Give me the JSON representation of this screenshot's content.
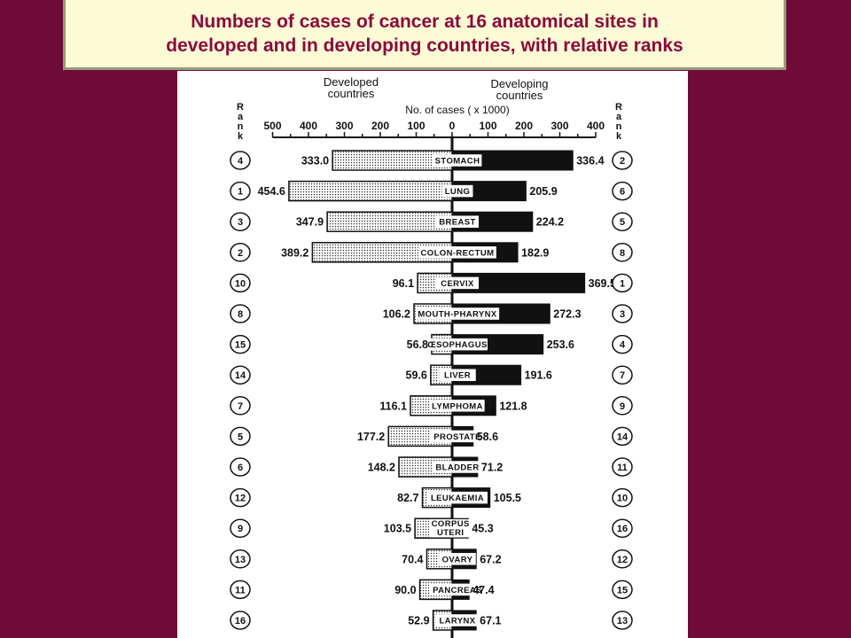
{
  "slide": {
    "title_line1": "Numbers of cases of cancer at 16 anatomical sites in",
    "title_line2": "developed and in developing countries, with relative ranks"
  },
  "colors": {
    "background": "#6e0b39",
    "title_box": "#fbfbd6",
    "title_text": "#8b0a3c",
    "developed_fill": "dotted",
    "developing_fill": "#111111"
  },
  "chart_data": {
    "type": "bar",
    "orientation": "horizontal-diverging",
    "header_left_line1": "Developed",
    "header_left_line2": "countries",
    "header_right_line1": "Developing",
    "header_right_line2": "countries",
    "axis_label": "No. of cases ( x 1000)",
    "rank_label": "Rank",
    "left_ticks": [
      "500",
      "400",
      "300",
      "200",
      "100"
    ],
    "zero_tick": "0",
    "right_ticks": [
      "100",
      "200",
      "300",
      "400"
    ],
    "xlim": [
      -500,
      400
    ],
    "series": [
      {
        "name": "Developed countries",
        "values": [
          333.0,
          454.6,
          347.9,
          389.2,
          96.1,
          106.2,
          56.8,
          59.6,
          116.1,
          177.2,
          148.2,
          82.7,
          103.5,
          70.4,
          90.0,
          52.9
        ]
      },
      {
        "name": "Developing countries",
        "values": [
          336.4,
          205.9,
          224.2,
          182.9,
          369.5,
          272.3,
          253.6,
          191.6,
          121.8,
          58.6,
          71.2,
          105.5,
          45.3,
          67.2,
          47.4,
          67.1
        ]
      }
    ],
    "sites": [
      {
        "label": "STOMACH",
        "developed": "333.0",
        "developing": "336.4",
        "rank_developed": "4",
        "rank_developing": "2"
      },
      {
        "label": "LUNG",
        "developed": "454.6",
        "developing": "205.9",
        "rank_developed": "1",
        "rank_developing": "6"
      },
      {
        "label": "BREAST",
        "developed": "347.9",
        "developing": "224.2",
        "rank_developed": "3",
        "rank_developing": "5"
      },
      {
        "label": "COLON-RECTUM",
        "developed": "389.2",
        "developing": "182.9",
        "rank_developed": "2",
        "rank_developing": "8"
      },
      {
        "label": "CERVIX",
        "developed": "96.1",
        "developing": "369.5",
        "rank_developed": "10",
        "rank_developing": "1"
      },
      {
        "label": "MOUTH-PHARYNX",
        "developed": "106.2",
        "developing": "272.3",
        "rank_developed": "8",
        "rank_developing": "3"
      },
      {
        "label": "ŒSOPHAGUS",
        "developed": "56.8",
        "developing": "253.6",
        "rank_developed": "15",
        "rank_developing": "4"
      },
      {
        "label": "LIVER",
        "developed": "59.6",
        "developing": "191.6",
        "rank_developed": "14",
        "rank_developing": "7"
      },
      {
        "label": "LYMPHOMA",
        "developed": "116.1",
        "developing": "121.8",
        "rank_developed": "7",
        "rank_developing": "9"
      },
      {
        "label": "PROSTATE",
        "developed": "177.2",
        "developing": "58.6",
        "rank_developed": "5",
        "rank_developing": "14"
      },
      {
        "label": "BLADDER",
        "developed": "148.2",
        "developing": "71.2",
        "rank_developed": "6",
        "rank_developing": "11"
      },
      {
        "label": "LEUKAEMIA",
        "developed": "82.7",
        "developing": "105.5",
        "rank_developed": "12",
        "rank_developing": "10"
      },
      {
        "label": "CORPUS UTERI",
        "developed": "103.5",
        "developing": "45.3",
        "rank_developed": "9",
        "rank_developing": "16"
      },
      {
        "label": "OVARY",
        "developed": "70.4",
        "developing": "67.2",
        "rank_developed": "13",
        "rank_developing": "12"
      },
      {
        "label": "PANCREAS",
        "developed": "90.0",
        "developing": "47.4",
        "rank_developed": "11",
        "rank_developing": "15"
      },
      {
        "label": "LARYNX",
        "developed": "52.9",
        "developing": "67.1",
        "rank_developed": "16",
        "rank_developing": "13"
      }
    ]
  }
}
